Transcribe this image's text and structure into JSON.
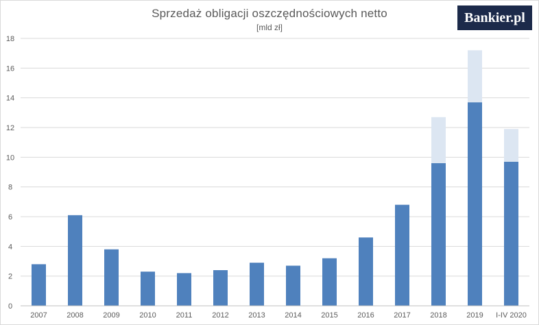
{
  "logo": {
    "text": "Bankier.pl"
  },
  "chart_data": {
    "type": "bar",
    "stacked": true,
    "title": "Sprzedaż obligacji oszczędnościowych netto",
    "subtitle": "[mld zł]",
    "categories": [
      "2007",
      "2008",
      "2009",
      "2010",
      "2011",
      "2012",
      "2013",
      "2014",
      "2015",
      "2016",
      "2017",
      "2018",
      "2019",
      "I-IV 2020"
    ],
    "series": [
      {
        "color": "#4f81bd",
        "values": [
          2.8,
          6.1,
          3.8,
          2.3,
          2.2,
          2.4,
          2.9,
          2.7,
          3.2,
          4.6,
          6.8,
          9.6,
          13.7,
          9.7
        ]
      },
      {
        "color": "#dce6f2",
        "values": [
          0,
          0,
          0,
          0,
          0,
          0,
          0,
          0,
          0,
          0,
          0,
          3.1,
          3.5,
          2.2
        ]
      }
    ],
    "ylim": [
      0,
      18
    ],
    "yticks": [
      0,
      2,
      4,
      6,
      8,
      10,
      12,
      14,
      16,
      18
    ],
    "grid": true,
    "gridColor": "#d9d9d9"
  }
}
